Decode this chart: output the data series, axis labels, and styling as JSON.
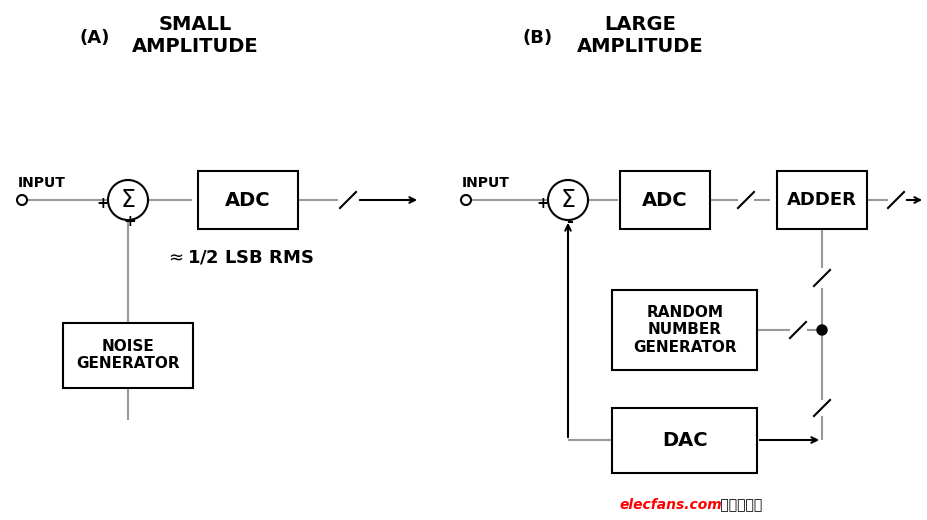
{
  "bg_color": "#ffffff",
  "line_color": "#999999",
  "box_color": "#000000",
  "text_color": "#000000",
  "arrow_color": "#000000",
  "title_A": "SMALL\nAMPLITUDE",
  "title_B": "LARGE\nAMPLITUDE",
  "label_A": "(A)",
  "label_B": "(B)",
  "watermark": "elecfans.com",
  "watermark_cn": "电子发烧友",
  "watermark_color": "#ff0000",
  "watermark_cn_color": "#000000",
  "fig_w": 9.27,
  "fig_h": 5.2,
  "dpi": 100
}
